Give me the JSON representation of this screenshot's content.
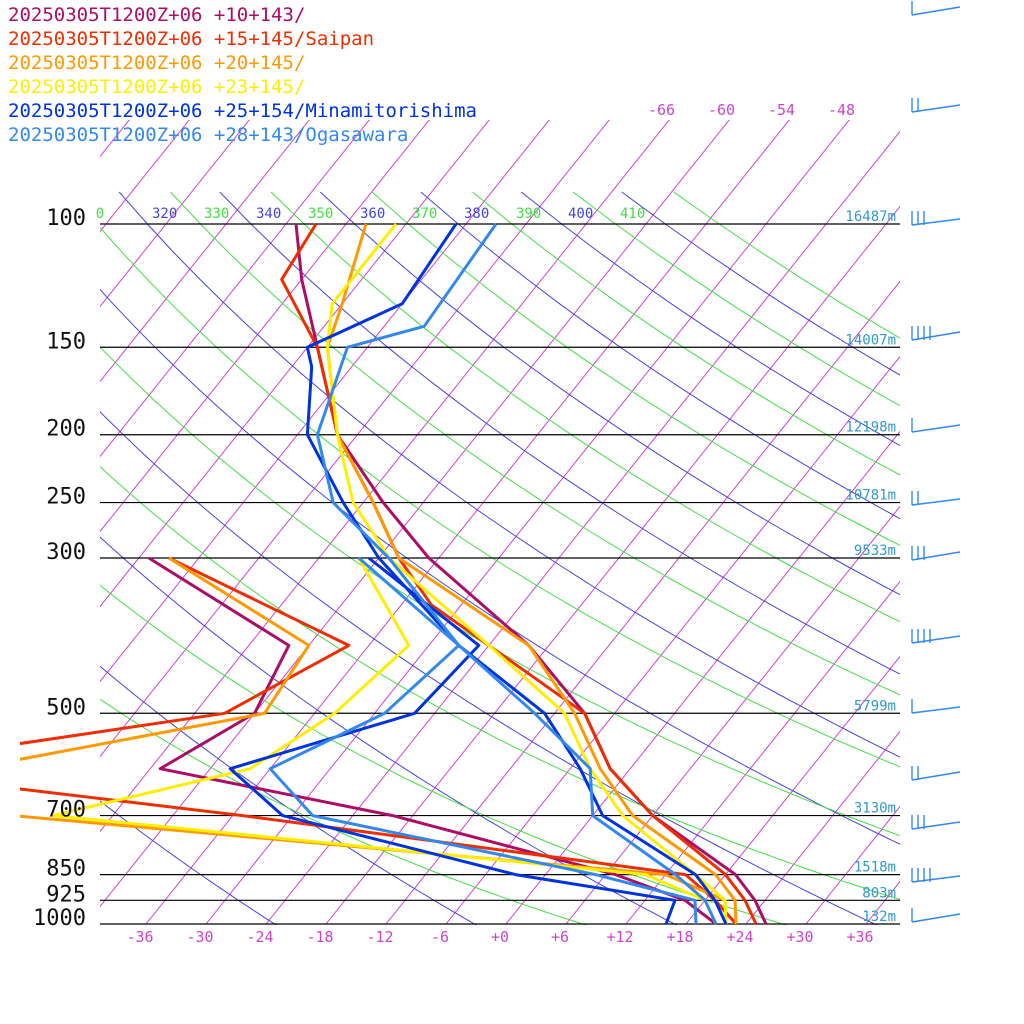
{
  "chart_data": {
    "type": "line",
    "title": "",
    "xlabel": "",
    "ylabel": "",
    "x_unit": "degC",
    "y_unit": "hPa",
    "pressure_levels": [
      100,
      150,
      200,
      250,
      300,
      500,
      700,
      850,
      925,
      1000
    ],
    "pressure_labels": [
      "100",
      "150",
      "200",
      "250",
      "300",
      "500",
      "700",
      "850",
      "925",
      "1000"
    ],
    "temperature_ticks": [
      "-36",
      "-30",
      "-24",
      "-18",
      "-12",
      "-6",
      "+0",
      "+6",
      "+12",
      "+18",
      "+24",
      "+30",
      "+36"
    ],
    "height_labels": [
      {
        "p": 100,
        "label": "16487m"
      },
      {
        "p": 150,
        "label": "14007m"
      },
      {
        "p": 200,
        "label": "12198m"
      },
      {
        "p": 250,
        "label": "10781m"
      },
      {
        "p": 300,
        "label": "9533m"
      },
      {
        "p": 500,
        "label": "5799m"
      },
      {
        "p": 700,
        "label": "3130m"
      },
      {
        "p": 850,
        "label": "1518m"
      },
      {
        "p": 925,
        "label": "803m"
      },
      {
        "p": 1000,
        "label": "132m"
      }
    ],
    "theta_labels": [
      "0",
      "320",
      "330",
      "340",
      "350",
      "360",
      "370",
      "380",
      "390",
      "400",
      "410"
    ],
    "isotherm_labels": [
      "-66",
      "-60",
      "-54",
      "-48"
    ],
    "ylim": [
      1000,
      100
    ],
    "xlim": [
      -40,
      40
    ],
    "grid": true,
    "legend_position": "top-left",
    "series": [
      {
        "name": "20250305T1200Z+06 +10+143/",
        "color": "#aa0e66",
        "temperature": [
          [
            100,
            -77
          ],
          [
            120,
            -72
          ],
          [
            150,
            -65
          ],
          [
            200,
            -56
          ],
          [
            250,
            -46
          ],
          [
            300,
            -37
          ],
          [
            400,
            -20
          ],
          [
            500,
            -9
          ],
          [
            600,
            -2
          ],
          [
            700,
            6
          ],
          [
            850,
            19
          ],
          [
            925,
            23
          ],
          [
            1000,
            26
          ]
        ],
        "dewpoint": [
          [
            300,
            -65
          ],
          [
            400,
            -44
          ],
          [
            500,
            -42
          ],
          [
            600,
            -47
          ],
          [
            700,
            -20
          ],
          [
            850,
            7
          ],
          [
            925,
            16
          ],
          [
            1000,
            21
          ]
        ]
      },
      {
        "name": "20250305T1200Z+06 +15+145/Saipan",
        "color": "#ee2d00",
        "temperature": [
          [
            100,
            -75
          ],
          [
            120,
            -74
          ],
          [
            150,
            -65
          ],
          [
            200,
            -56
          ],
          [
            250,
            -47
          ],
          [
            300,
            -40
          ],
          [
            350,
            -33
          ],
          [
            500,
            -9
          ],
          [
            600,
            -2
          ],
          [
            700,
            6
          ],
          [
            850,
            18
          ],
          [
            925,
            22
          ],
          [
            1000,
            25
          ]
        ],
        "dewpoint": [
          [
            300,
            -63
          ],
          [
            400,
            -38
          ],
          [
            500,
            -45
          ],
          [
            600,
            -78
          ],
          [
            700,
            -35
          ],
          [
            850,
            14
          ],
          [
            925,
            19
          ],
          [
            1000,
            23
          ]
        ]
      },
      {
        "name": "20250305T1200Z+06 +20+145/",
        "color": "#ff9900",
        "temperature": [
          [
            100,
            -70
          ],
          [
            130,
            -66
          ],
          [
            150,
            -64
          ],
          [
            200,
            -56
          ],
          [
            250,
            -47
          ],
          [
            300,
            -40
          ],
          [
            400,
            -20
          ],
          [
            500,
            -10
          ],
          [
            600,
            -3
          ],
          [
            700,
            4
          ],
          [
            850,
            17
          ],
          [
            925,
            21
          ],
          [
            1000,
            23
          ]
        ],
        "dewpoint": [
          [
            300,
            -63
          ],
          [
            400,
            -42
          ],
          [
            500,
            -41
          ],
          [
            600,
            -66
          ],
          [
            700,
            -58
          ],
          [
            850,
            12
          ],
          [
            925,
            20
          ],
          [
            1000,
            22
          ]
        ]
      },
      {
        "name": "20250305T1200Z+06 +23+145/",
        "color": "#ffee00",
        "temperature": [
          [
            100,
            -67
          ],
          [
            130,
            -67
          ],
          [
            150,
            -64
          ],
          [
            200,
            -56
          ],
          [
            250,
            -49
          ],
          [
            280,
            -44
          ],
          [
            300,
            -41
          ],
          [
            400,
            -24
          ],
          [
            500,
            -11
          ],
          [
            600,
            -4
          ],
          [
            700,
            3
          ],
          [
            850,
            15
          ],
          [
            925,
            20
          ],
          [
            1000,
            22
          ]
        ],
        "dewpoint": [
          [
            300,
            -44
          ],
          [
            400,
            -32
          ],
          [
            500,
            -34
          ],
          [
            600,
            -38
          ],
          [
            700,
            -54
          ],
          [
            850,
            10
          ],
          [
            925,
            18
          ],
          [
            1000,
            21
          ]
        ]
      },
      {
        "name": "20250305T1200Z+06 +25+154/Minamitorishima",
        "color": "#0033dd",
        "temperature": [
          [
            100,
            -61
          ],
          [
            130,
            -60
          ],
          [
            150,
            -66
          ],
          [
            160,
            -64
          ],
          [
            200,
            -59
          ],
          [
            250,
            -50
          ],
          [
            300,
            -42
          ],
          [
            400,
            -27
          ],
          [
            500,
            -13
          ],
          [
            600,
            -5
          ],
          [
            700,
            1
          ],
          [
            850,
            15
          ],
          [
            925,
            19
          ],
          [
            1000,
            22
          ]
        ],
        "dewpoint": [
          [
            300,
            -43
          ],
          [
            400,
            -25
          ],
          [
            500,
            -26
          ],
          [
            600,
            -40
          ],
          [
            700,
            -31
          ],
          [
            850,
            -3
          ],
          [
            925,
            15
          ],
          [
            1000,
            16
          ]
        ]
      },
      {
        "name": "20250305T1200Z+06 +28+143/Ogasawara",
        "color": "#3388ee",
        "temperature": [
          [
            100,
            -57
          ],
          [
            140,
            -56
          ],
          [
            150,
            -62
          ],
          [
            200,
            -58
          ],
          [
            250,
            -51
          ],
          [
            300,
            -41
          ],
          [
            400,
            -27
          ],
          [
            500,
            -14
          ],
          [
            600,
            -4
          ],
          [
            700,
            0
          ],
          [
            850,
            13
          ],
          [
            925,
            18
          ],
          [
            1000,
            21
          ]
        ],
        "dewpoint": [
          [
            300,
            -44
          ],
          [
            400,
            -27
          ],
          [
            500,
            -29
          ],
          [
            600,
            -36
          ],
          [
            700,
            -28
          ],
          [
            850,
            5
          ],
          [
            925,
            17
          ],
          [
            1000,
            19
          ]
        ]
      }
    ],
    "isotherm_color": "#cc33cc",
    "dry_adiabat_color": "#4444dd",
    "moist_adiabat_color": "#44dd44",
    "isobar_color": "#000000",
    "height_label_color": "#3399cc"
  }
}
